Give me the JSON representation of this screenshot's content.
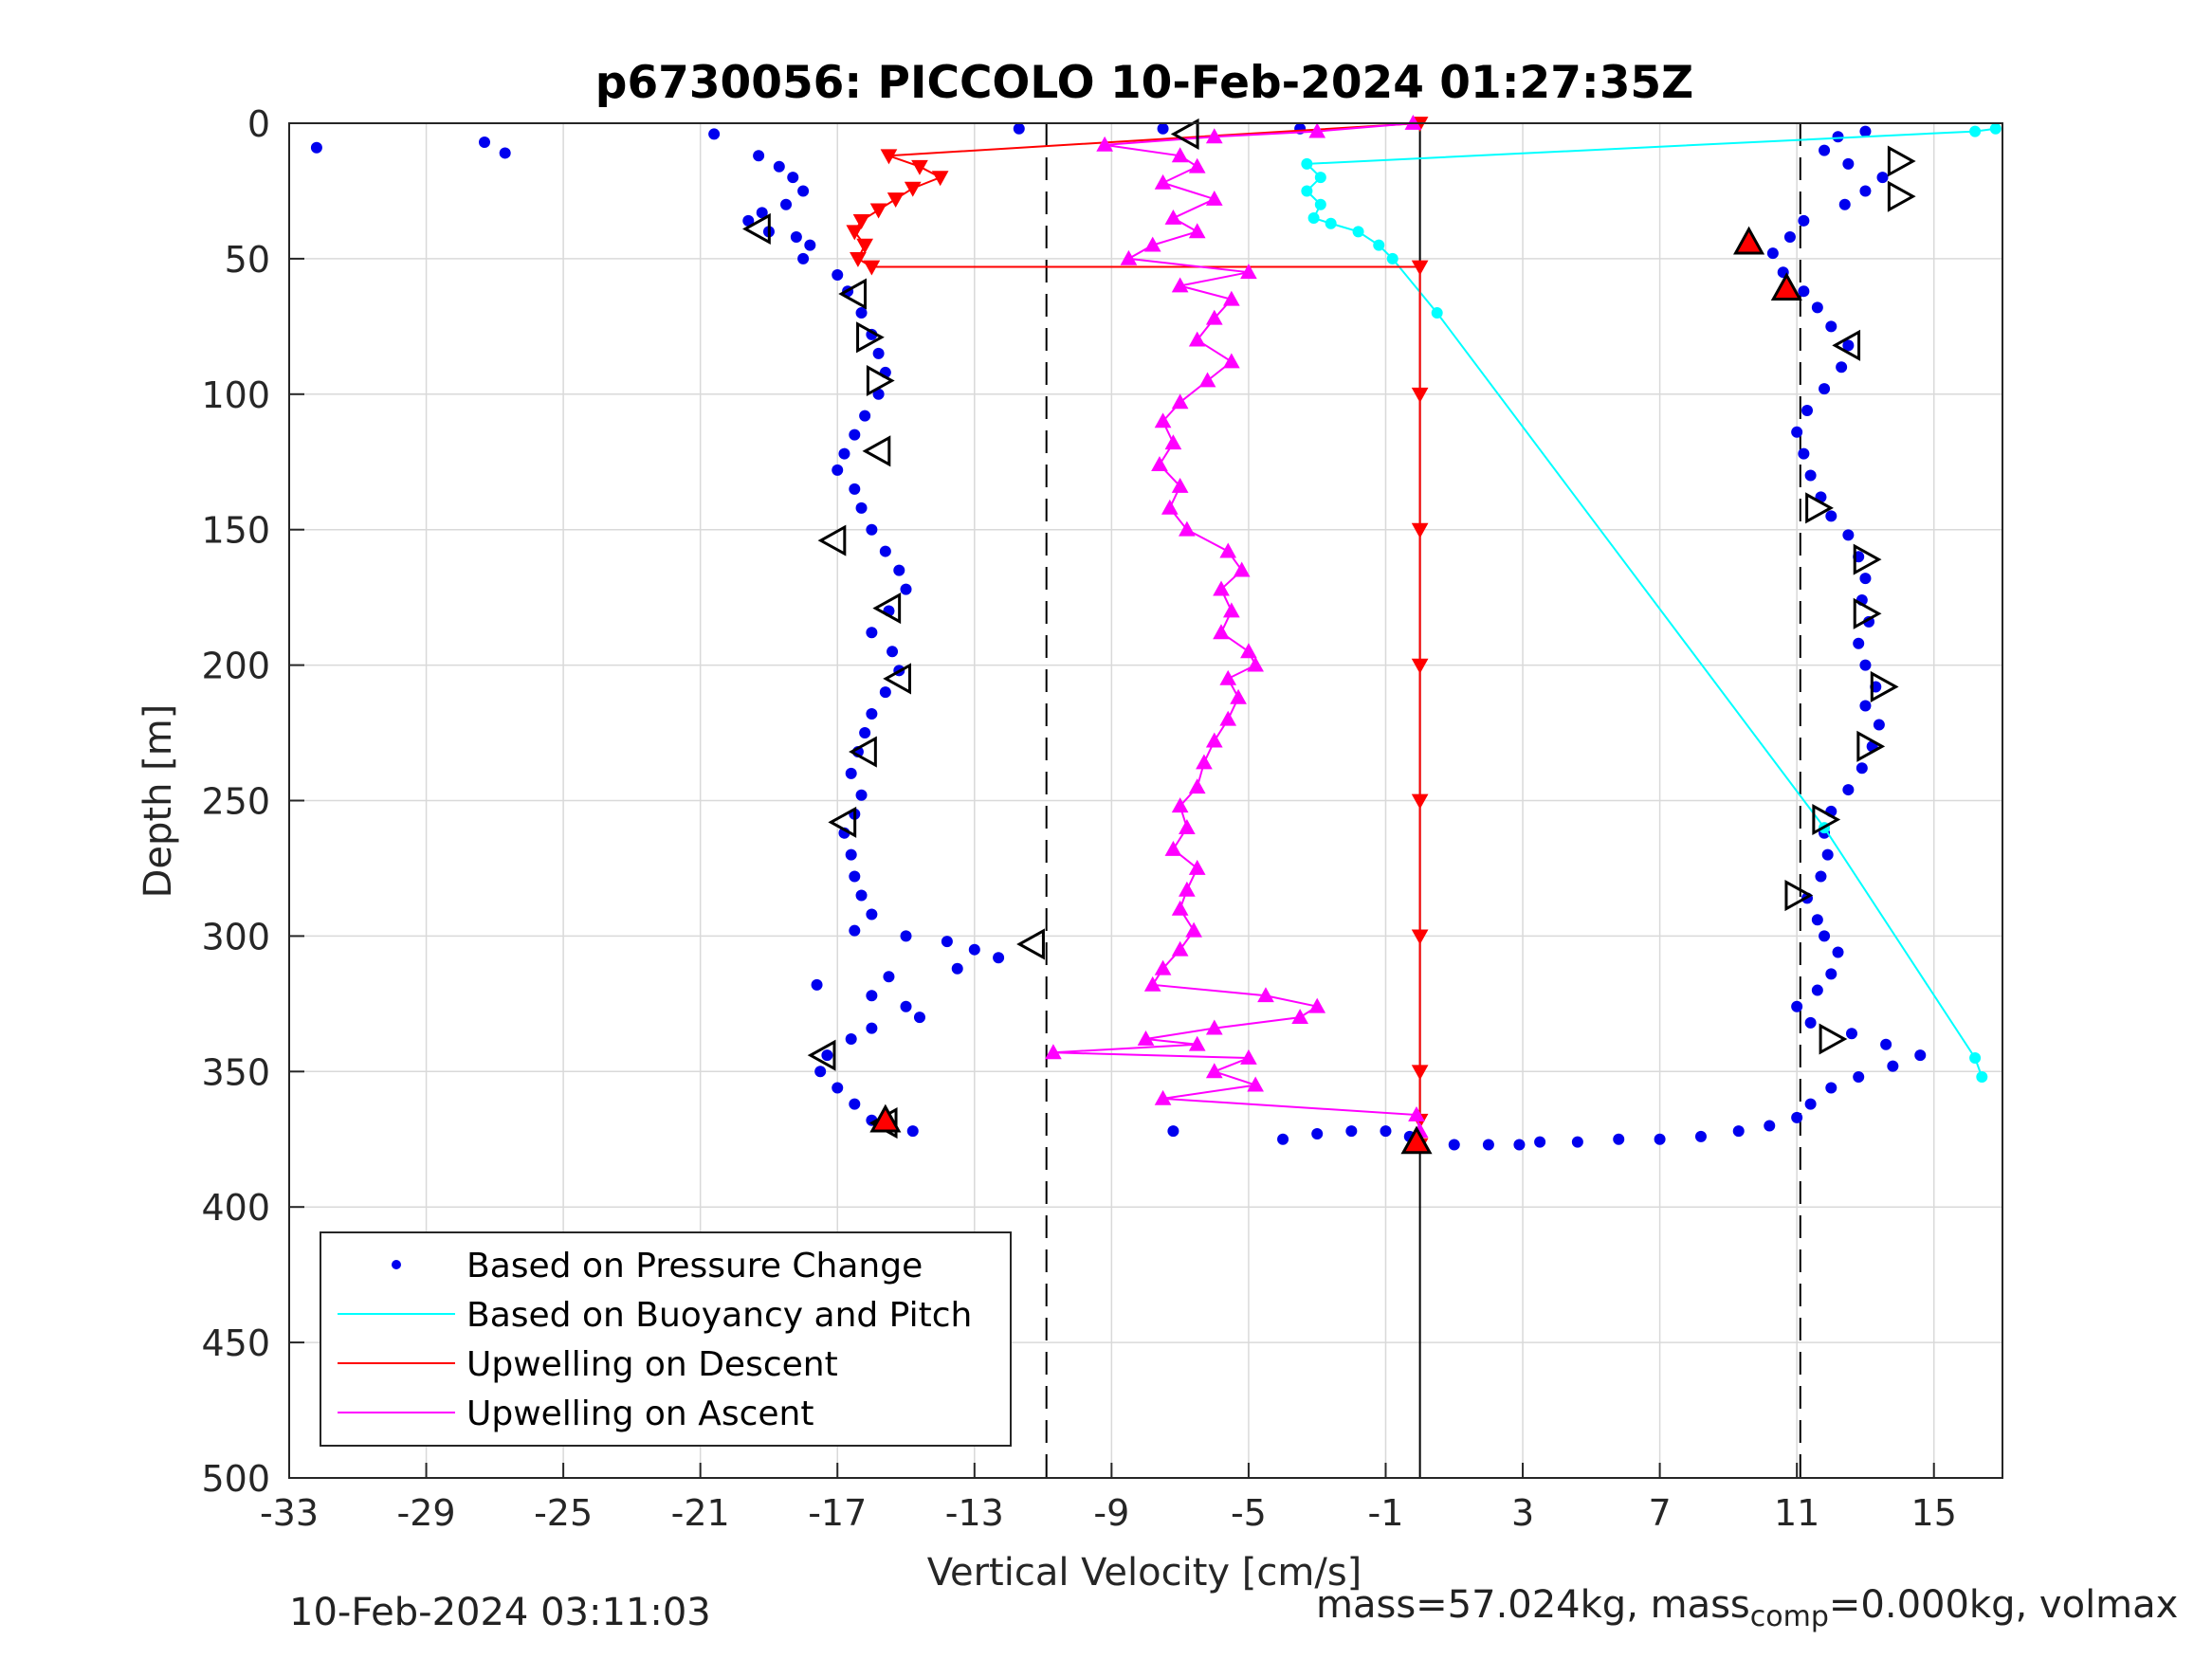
{
  "chart_data": {
    "type": "scatter",
    "title": "p6730056: PICCOLO 10-Feb-2024 01:27:35Z",
    "xlabel": "Vertical Velocity [cm/s]",
    "ylabel": "Depth [m]",
    "xlim": [
      -33,
      17
    ],
    "ylim": [
      0,
      500
    ],
    "y_reversed": true,
    "xticks": [
      -33,
      -29,
      -25,
      -21,
      -17,
      -13,
      -9,
      -5,
      -1,
      3,
      7,
      11,
      15
    ],
    "yticks": [
      0,
      50,
      100,
      150,
      200,
      250,
      300,
      350,
      400,
      450,
      500
    ],
    "grid": true,
    "legend_position": "bottom-left",
    "legend": [
      {
        "label": "Based on Pressure Change",
        "color": "#0000ee",
        "marker": "dot"
      },
      {
        "label": "Based on Buoyancy and Pitch",
        "color": "#00ffff",
        "marker": "line"
      },
      {
        "label": "Upwelling on Descent",
        "color": "#ff0000",
        "marker": "line"
      },
      {
        "label": "Upwelling on Ascent",
        "color": "#ff00ff",
        "marker": "line"
      }
    ],
    "reference_lines": [
      {
        "x": -10.9,
        "style": "dashed"
      },
      {
        "x": 11.1,
        "style": "dashed"
      },
      {
        "x": 0,
        "style": "solid"
      }
    ],
    "series": [
      {
        "name": "Pressure change (descent)",
        "color": "#0000ee",
        "points": [
          [
            -32.2,
            9
          ],
          [
            -27.3,
            7
          ],
          [
            -26.7,
            11
          ],
          [
            -20.6,
            4
          ],
          [
            -19.3,
            12
          ],
          [
            -18.7,
            16
          ],
          [
            -18.3,
            20
          ],
          [
            -18.0,
            25
          ],
          [
            -18.5,
            30
          ],
          [
            -19.2,
            33
          ],
          [
            -19.6,
            36
          ],
          [
            -19.0,
            40
          ],
          [
            -18.2,
            42
          ],
          [
            -17.8,
            45
          ],
          [
            -18.0,
            50
          ],
          [
            -17.0,
            56
          ],
          [
            -16.7,
            62
          ],
          [
            -16.3,
            70
          ],
          [
            -16.0,
            78
          ],
          [
            -15.8,
            85
          ],
          [
            -15.6,
            92
          ],
          [
            -15.8,
            100
          ],
          [
            -16.2,
            108
          ],
          [
            -16.5,
            115
          ],
          [
            -16.8,
            122
          ],
          [
            -17.0,
            128
          ],
          [
            -16.5,
            135
          ],
          [
            -16.3,
            142
          ],
          [
            -16.0,
            150
          ],
          [
            -15.6,
            158
          ],
          [
            -15.2,
            165
          ],
          [
            -15.0,
            172
          ],
          [
            -15.5,
            180
          ],
          [
            -16.0,
            188
          ],
          [
            -15.4,
            195
          ],
          [
            -15.2,
            202
          ],
          [
            -15.6,
            210
          ],
          [
            -16.0,
            218
          ],
          [
            -16.2,
            225
          ],
          [
            -16.4,
            232
          ],
          [
            -16.6,
            240
          ],
          [
            -16.3,
            248
          ],
          [
            -16.5,
            255
          ],
          [
            -16.8,
            262
          ],
          [
            -16.6,
            270
          ],
          [
            -16.5,
            278
          ],
          [
            -16.3,
            285
          ],
          [
            -16.0,
            292
          ],
          [
            -16.5,
            298
          ],
          [
            -15.0,
            300
          ],
          [
            -13.8,
            302
          ],
          [
            -13.0,
            305
          ],
          [
            -12.3,
            308
          ],
          [
            -13.5,
            312
          ],
          [
            -15.5,
            315
          ],
          [
            -17.6,
            318
          ],
          [
            -16.0,
            322
          ],
          [
            -15.0,
            326
          ],
          [
            -14.6,
            330
          ],
          [
            -16.0,
            334
          ],
          [
            -16.6,
            338
          ],
          [
            -17.3,
            344
          ],
          [
            -17.5,
            350
          ],
          [
            -17.0,
            356
          ],
          [
            -16.5,
            362
          ],
          [
            -16.0,
            368
          ],
          [
            -14.8,
            372
          ]
        ]
      },
      {
        "name": "Pressure change (ascent)",
        "color": "#0000ee",
        "points": [
          [
            2.9,
            377
          ],
          [
            3.5,
            376
          ],
          [
            4.6,
            376
          ],
          [
            5.8,
            375
          ],
          [
            7.0,
            375
          ],
          [
            8.2,
            374
          ],
          [
            9.3,
            372
          ],
          [
            10.2,
            370
          ],
          [
            11.0,
            367
          ],
          [
            11.4,
            362
          ],
          [
            12.0,
            356
          ],
          [
            12.8,
            352
          ],
          [
            13.8,
            348
          ],
          [
            14.6,
            344
          ],
          [
            13.6,
            340
          ],
          [
            12.6,
            336
          ],
          [
            11.4,
            332
          ],
          [
            11.0,
            326
          ],
          [
            11.6,
            320
          ],
          [
            12.0,
            314
          ],
          [
            12.2,
            306
          ],
          [
            11.8,
            300
          ],
          [
            11.6,
            294
          ],
          [
            11.3,
            286
          ],
          [
            11.7,
            278
          ],
          [
            11.9,
            270
          ],
          [
            11.8,
            262
          ],
          [
            12.0,
            254
          ],
          [
            12.5,
            246
          ],
          [
            12.9,
            238
          ],
          [
            13.2,
            230
          ],
          [
            13.4,
            222
          ],
          [
            13.0,
            215
          ],
          [
            13.3,
            208
          ],
          [
            13.0,
            200
          ],
          [
            12.8,
            192
          ],
          [
            13.1,
            184
          ],
          [
            12.9,
            176
          ],
          [
            13.0,
            168
          ],
          [
            12.8,
            160
          ],
          [
            12.5,
            152
          ],
          [
            12.0,
            145
          ],
          [
            11.7,
            138
          ],
          [
            11.4,
            130
          ],
          [
            11.2,
            122
          ],
          [
            11.0,
            114
          ],
          [
            11.3,
            106
          ],
          [
            11.8,
            98
          ],
          [
            12.3,
            90
          ],
          [
            12.5,
            82
          ],
          [
            12.0,
            75
          ],
          [
            11.6,
            68
          ],
          [
            11.2,
            62
          ],
          [
            10.6,
            55
          ],
          [
            10.3,
            48
          ],
          [
            10.8,
            42
          ],
          [
            11.2,
            36
          ],
          [
            12.4,
            30
          ],
          [
            13.0,
            25
          ],
          [
            13.5,
            20
          ],
          [
            12.5,
            15
          ],
          [
            11.8,
            10
          ],
          [
            12.2,
            5
          ],
          [
            13.0,
            3
          ]
        ]
      },
      {
        "name": "Pressure change (bottom)",
        "color": "#0000ee",
        "points": [
          [
            -4.0,
            375
          ],
          [
            -3.0,
            373
          ],
          [
            -2.0,
            372
          ],
          [
            -1.0,
            372
          ],
          [
            -0.3,
            374
          ],
          [
            1.0,
            377
          ],
          [
            2.0,
            377
          ],
          [
            -7.2,
            372
          ],
          [
            -7.5,
            2
          ],
          [
            -3.5,
            2
          ],
          [
            -11.7,
            2
          ]
        ]
      },
      {
        "name": "Based on Buoyancy and Pitch",
        "color": "#00ffff",
        "points": [
          [
            16.8,
            2
          ],
          [
            16.2,
            3
          ],
          [
            -3.3,
            15
          ],
          [
            -2.9,
            20
          ],
          [
            -3.3,
            25
          ],
          [
            -2.9,
            30
          ],
          [
            -3.1,
            35
          ],
          [
            -2.6,
            37
          ],
          [
            -1.8,
            40
          ],
          [
            -1.2,
            45
          ],
          [
            -0.8,
            50
          ],
          [
            0.5,
            70
          ],
          [
            11.8,
            260
          ],
          [
            16.2,
            345
          ],
          [
            16.4,
            352
          ]
        ]
      },
      {
        "name": "Upwelling on Descent",
        "color": "#ff0000",
        "points": [
          [
            0,
            0
          ],
          [
            -15.5,
            12
          ],
          [
            -14.6,
            16
          ],
          [
            -14.0,
            20
          ],
          [
            -14.8,
            24
          ],
          [
            -15.3,
            28
          ],
          [
            -15.8,
            32
          ],
          [
            -16.3,
            36
          ],
          [
            -16.5,
            40
          ],
          [
            -16.2,
            45
          ],
          [
            -16.4,
            50
          ],
          [
            -16.0,
            53
          ],
          [
            0,
            53
          ],
          [
            0,
            100
          ],
          [
            0,
            150
          ],
          [
            0,
            200
          ],
          [
            0,
            250
          ],
          [
            0,
            300
          ],
          [
            0,
            350
          ],
          [
            0,
            368
          ],
          [
            0,
            377
          ]
        ]
      },
      {
        "name": "Upwelling on Ascent",
        "color": "#ff00ff",
        "points": [
          [
            -0.2,
            0
          ],
          [
            -3.0,
            3
          ],
          [
            -6.0,
            5
          ],
          [
            -9.2,
            8
          ],
          [
            -7.0,
            12
          ],
          [
            -6.5,
            16
          ],
          [
            -7.5,
            22
          ],
          [
            -6.0,
            28
          ],
          [
            -7.2,
            35
          ],
          [
            -6.5,
            40
          ],
          [
            -7.8,
            45
          ],
          [
            -8.5,
            50
          ],
          [
            -5.0,
            55
          ],
          [
            -7.0,
            60
          ],
          [
            -5.5,
            65
          ],
          [
            -6.0,
            72
          ],
          [
            -6.5,
            80
          ],
          [
            -5.5,
            88
          ],
          [
            -6.2,
            95
          ],
          [
            -7.0,
            103
          ],
          [
            -7.5,
            110
          ],
          [
            -7.2,
            118
          ],
          [
            -7.6,
            126
          ],
          [
            -7.0,
            134
          ],
          [
            -7.3,
            142
          ],
          [
            -6.8,
            150
          ],
          [
            -5.6,
            158
          ],
          [
            -5.2,
            165
          ],
          [
            -5.8,
            172
          ],
          [
            -5.5,
            180
          ],
          [
            -5.8,
            188
          ],
          [
            -5.0,
            195
          ],
          [
            -4.8,
            200
          ],
          [
            -5.6,
            205
          ],
          [
            -5.3,
            212
          ],
          [
            -5.6,
            220
          ],
          [
            -6.0,
            228
          ],
          [
            -6.3,
            236
          ],
          [
            -6.5,
            245
          ],
          [
            -7.0,
            252
          ],
          [
            -6.8,
            260
          ],
          [
            -7.2,
            268
          ],
          [
            -6.5,
            275
          ],
          [
            -6.8,
            283
          ],
          [
            -7.0,
            290
          ],
          [
            -6.6,
            298
          ],
          [
            -7.0,
            305
          ],
          [
            -7.5,
            312
          ],
          [
            -7.8,
            318
          ],
          [
            -4.5,
            322
          ],
          [
            -3.0,
            326
          ],
          [
            -3.5,
            330
          ],
          [
            -6.0,
            334
          ],
          [
            -8.0,
            338
          ],
          [
            -6.5,
            340
          ],
          [
            -10.7,
            343
          ],
          [
            -5.0,
            345
          ],
          [
            -6.0,
            350
          ],
          [
            -4.8,
            355
          ],
          [
            -7.5,
            360
          ],
          [
            -0.1,
            366
          ],
          [
            0,
            372
          ],
          [
            0,
            377
          ]
        ]
      }
    ],
    "marker_series": [
      {
        "name": "segment markers (open triangles)",
        "points": [
          [
            -6.8,
            4
          ],
          [
            14.0,
            14
          ],
          [
            -19.3,
            39
          ],
          [
            14.0,
            27
          ],
          [
            -16.5,
            63
          ],
          [
            -16.1,
            79
          ],
          [
            12.5,
            82
          ],
          [
            -15.8,
            95
          ],
          [
            -15.8,
            121
          ],
          [
            11.6,
            142
          ],
          [
            -17.1,
            154
          ],
          [
            13.0,
            161
          ],
          [
            -15.5,
            179
          ],
          [
            13.0,
            181
          ],
          [
            -15.2,
            205
          ],
          [
            13.5,
            208
          ],
          [
            -16.2,
            232
          ],
          [
            13.1,
            230
          ],
          [
            -16.8,
            258
          ],
          [
            11.8,
            257
          ],
          [
            -11.3,
            303
          ],
          [
            11.0,
            285
          ],
          [
            -17.4,
            344
          ],
          [
            12.0,
            338
          ],
          [
            -15.6,
            369
          ]
        ]
      },
      {
        "name": "red triangles",
        "points": [
          [
            9.6,
            44
          ],
          [
            10.7,
            61
          ],
          [
            -0.1,
            376
          ],
          [
            -15.6,
            368
          ]
        ]
      }
    ]
  },
  "footer": {
    "timestamp": "10-Feb-2024 03:11:03",
    "mass_text": "mass=57.024kg, mass",
    "comp_sub": "comp",
    "comp_text": "=0.000kg, volmax"
  }
}
